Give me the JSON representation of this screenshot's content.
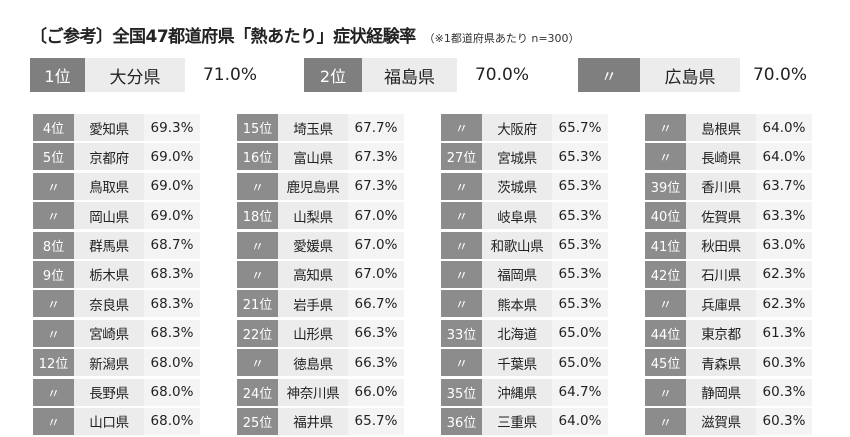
{
  "header": {
    "title": "〔ご参考〕全国47都道府県「熱あたり」症状経験率",
    "note": "（※1都道府県あたり n=300）"
  },
  "top3": [
    {
      "rank": "1位",
      "pref": "大分県",
      "pct": "71.0%"
    },
    {
      "rank": "2位",
      "pref": "福島県",
      "pct": "70.0%"
    },
    {
      "rank": "〃",
      "pref": "広島県",
      "pct": "70.0%"
    }
  ],
  "columns": [
    [
      {
        "rank": "4位",
        "pref": "愛知県",
        "pct": "69.3%"
      },
      {
        "rank": "5位",
        "pref": "京都府",
        "pct": "69.0%"
      },
      {
        "rank": "〃",
        "pref": "鳥取県",
        "pct": "69.0%"
      },
      {
        "rank": "〃",
        "pref": "岡山県",
        "pct": "69.0%"
      },
      {
        "rank": "8位",
        "pref": "群馬県",
        "pct": "68.7%"
      },
      {
        "rank": "9位",
        "pref": "栃木県",
        "pct": "68.3%"
      },
      {
        "rank": "〃",
        "pref": "奈良県",
        "pct": "68.3%"
      },
      {
        "rank": "〃",
        "pref": "宮崎県",
        "pct": "68.3%"
      },
      {
        "rank": "12位",
        "pref": "新潟県",
        "pct": "68.0%"
      },
      {
        "rank": "〃",
        "pref": "長野県",
        "pct": "68.0%"
      },
      {
        "rank": "〃",
        "pref": "山口県",
        "pct": "68.0%"
      }
    ],
    [
      {
        "rank": "15位",
        "pref": "埼玉県",
        "pct": "67.7%"
      },
      {
        "rank": "16位",
        "pref": "富山県",
        "pct": "67.3%"
      },
      {
        "rank": "〃",
        "pref": "鹿児島県",
        "pct": "67.3%"
      },
      {
        "rank": "18位",
        "pref": "山梨県",
        "pct": "67.0%"
      },
      {
        "rank": "〃",
        "pref": "愛媛県",
        "pct": "67.0%"
      },
      {
        "rank": "〃",
        "pref": "高知県",
        "pct": "67.0%"
      },
      {
        "rank": "21位",
        "pref": "岩手県",
        "pct": "66.7%"
      },
      {
        "rank": "22位",
        "pref": "山形県",
        "pct": "66.3%"
      },
      {
        "rank": "〃",
        "pref": "徳島県",
        "pct": "66.3%"
      },
      {
        "rank": "24位",
        "pref": "神奈川県",
        "pct": "66.0%"
      },
      {
        "rank": "25位",
        "pref": "福井県",
        "pct": "65.7%"
      }
    ],
    [
      {
        "rank": "〃",
        "pref": "大阪府",
        "pct": "65.7%"
      },
      {
        "rank": "27位",
        "pref": "宮城県",
        "pct": "65.3%"
      },
      {
        "rank": "〃",
        "pref": "茨城県",
        "pct": "65.3%"
      },
      {
        "rank": "〃",
        "pref": "岐阜県",
        "pct": "65.3%"
      },
      {
        "rank": "〃",
        "pref": "和歌山県",
        "pct": "65.3%"
      },
      {
        "rank": "〃",
        "pref": "福岡県",
        "pct": "65.3%"
      },
      {
        "rank": "〃",
        "pref": "熊本県",
        "pct": "65.3%"
      },
      {
        "rank": "33位",
        "pref": "北海道",
        "pct": "65.0%"
      },
      {
        "rank": "〃",
        "pref": "千葉県",
        "pct": "65.0%"
      },
      {
        "rank": "35位",
        "pref": "沖縄県",
        "pct": "64.7%"
      },
      {
        "rank": "36位",
        "pref": "三重県",
        "pct": "64.0%"
      }
    ],
    [
      {
        "rank": "〃",
        "pref": "島根県",
        "pct": "64.0%"
      },
      {
        "rank": "〃",
        "pref": "長崎県",
        "pct": "64.0%"
      },
      {
        "rank": "39位",
        "pref": "香川県",
        "pct": "63.7%"
      },
      {
        "rank": "40位",
        "pref": "佐賀県",
        "pct": "63.3%"
      },
      {
        "rank": "41位",
        "pref": "秋田県",
        "pct": "63.0%"
      },
      {
        "rank": "42位",
        "pref": "石川県",
        "pct": "62.3%"
      },
      {
        "rank": "〃",
        "pref": "兵庫県",
        "pct": "62.3%"
      },
      {
        "rank": "44位",
        "pref": "東京都",
        "pct": "61.3%"
      },
      {
        "rank": "45位",
        "pref": "青森県",
        "pct": "60.3%"
      },
      {
        "rank": "〃",
        "pref": "静岡県",
        "pct": "60.3%"
      },
      {
        "rank": "〃",
        "pref": "滋賀県",
        "pct": "60.3%"
      }
    ]
  ]
}
